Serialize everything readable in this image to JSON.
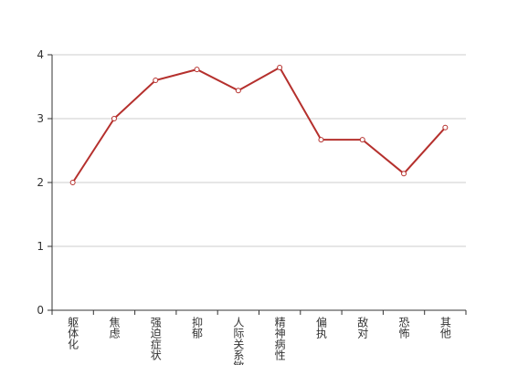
{
  "chart_data": {
    "type": "line",
    "categories": [
      "躯体化",
      "焦虑",
      "强迫症状",
      "抑郁",
      "人际关系敏感",
      "精神病性",
      "偏执",
      "敌对",
      "恐怖",
      "其他"
    ],
    "values": [
      2.0,
      3.0,
      3.6,
      3.77,
      3.44,
      3.8,
      2.67,
      2.67,
      2.14,
      2.86
    ],
    "color": "#b5302d",
    "ylim": [
      0,
      4
    ],
    "yticks": [
      0,
      1,
      2,
      3,
      4
    ],
    "grid": true
  }
}
